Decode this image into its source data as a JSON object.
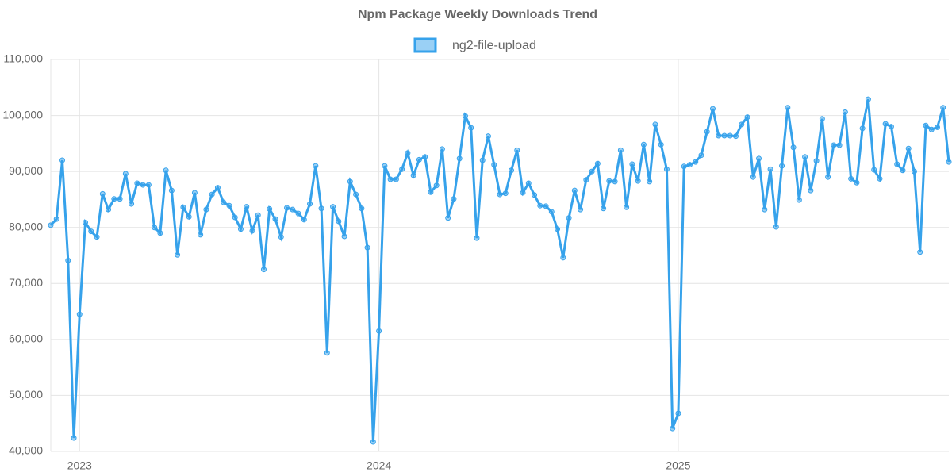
{
  "chart_data": {
    "type": "line",
    "title": "Npm Package Weekly Downloads Trend",
    "categories": [
      null,
      null,
      null,
      null,
      null,
      "2023",
      null,
      null,
      null,
      null,
      null,
      null,
      null,
      null,
      null,
      null,
      null,
      null,
      null,
      null,
      null,
      null,
      null,
      null,
      null,
      null,
      null,
      null,
      null,
      null,
      null,
      null,
      null,
      null,
      null,
      null,
      null,
      null,
      null,
      null,
      null,
      null,
      null,
      null,
      null,
      null,
      null,
      null,
      null,
      null,
      null,
      null,
      null,
      null,
      null,
      null,
      null,
      "2024",
      null,
      null,
      null,
      null,
      null,
      null,
      null,
      null,
      null,
      null,
      null,
      null,
      null,
      null,
      null,
      null,
      null,
      null,
      null,
      null,
      null,
      null,
      null,
      null,
      null,
      null,
      null,
      null,
      null,
      null,
      null,
      null,
      null,
      null,
      null,
      null,
      null,
      null,
      null,
      null,
      null,
      null,
      null,
      null,
      null,
      null,
      null,
      null,
      null,
      null,
      null,
      "2025",
      null,
      null,
      null,
      null,
      null,
      null,
      null,
      null,
      null,
      null,
      null,
      null,
      null,
      null,
      null,
      null,
      null,
      null,
      null,
      null,
      null,
      null,
      null,
      null,
      null,
      null,
      null,
      null,
      null,
      null,
      null,
      null,
      null,
      null,
      null,
      null,
      null,
      null,
      null,
      null,
      null,
      null,
      null,
      null,
      null,
      null,
      null
    ],
    "series": [
      {
        "name": "ng2-file-upload",
        "color": "#36a2eb",
        "values": [
          80400,
          81500,
          92000,
          74100,
          42400,
          64500,
          80900,
          79300,
          78300,
          86000,
          83200,
          85100,
          85100,
          89600,
          84200,
          87900,
          87600,
          87600,
          80000,
          79000,
          90200,
          86600,
          75100,
          83600,
          81900,
          86200,
          78700,
          83200,
          85900,
          87100,
          84500,
          83900,
          81800,
          79700,
          83700,
          79400,
          82200,
          72500,
          83300,
          81500,
          78300,
          83500,
          83200,
          82500,
          81400,
          84200,
          91000,
          83400,
          57600,
          83700,
          81100,
          78400,
          88200,
          85900,
          83400,
          76400,
          41700,
          61500,
          91000,
          88600,
          88600,
          90400,
          93300,
          89300,
          92100,
          92600,
          86300,
          87500,
          94000,
          81700,
          85100,
          92300,
          99900,
          97800,
          78100,
          92000,
          96300,
          91200,
          85900,
          86100,
          90200,
          93800,
          86200,
          87900,
          85800,
          83900,
          83800,
          82800,
          79700,
          74600,
          81700,
          86600,
          83200,
          88500,
          90000,
          91400,
          83400,
          88300,
          88200,
          93800,
          83600,
          91300,
          88300,
          94800,
          88200,
          98400,
          94800,
          90400,
          44100,
          46800,
          90900,
          91200,
          91700,
          92900,
          97100,
          101200,
          96400,
          96400,
          96400,
          96300,
          98400,
          99700,
          89000,
          92300,
          83200,
          90400,
          80100,
          91000,
          101400,
          94300,
          84900,
          92600,
          86600,
          91900,
          99400,
          89000,
          94700,
          94700,
          100600,
          88700,
          88000,
          97700,
          102900,
          90300,
          88700,
          98500,
          98000,
          91300,
          90200,
          94100,
          90000,
          75600,
          98200,
          97500,
          97900,
          101400,
          91700
        ]
      }
    ],
    "ylim": [
      40000,
      110000
    ],
    "yticks": [
      {
        "value": 40000,
        "label": "40,000"
      },
      {
        "value": 50000,
        "label": "50,000"
      },
      {
        "value": 60000,
        "label": "60,000"
      },
      {
        "value": 70000,
        "label": "70,000"
      },
      {
        "value": 80000,
        "label": "80,000"
      },
      {
        "value": 90000,
        "label": "90,000"
      },
      {
        "value": 100000,
        "label": "100,000"
      },
      {
        "value": 110000,
        "label": "110,000"
      }
    ],
    "grid": true
  }
}
